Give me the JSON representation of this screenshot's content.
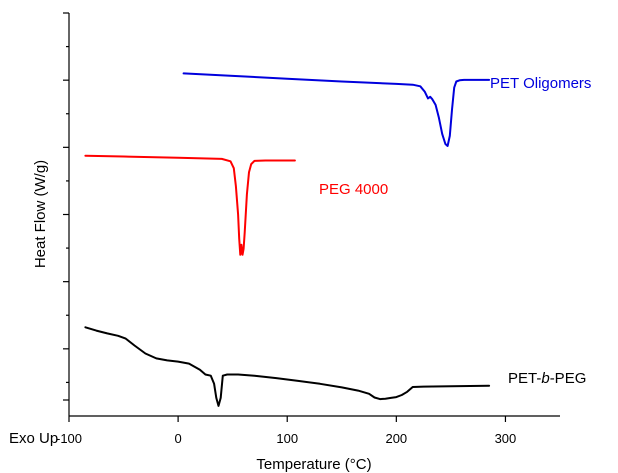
{
  "chart_data": {
    "type": "line",
    "title": "",
    "xlabel": "Temperature (°C)",
    "ylabel": "Heat Flow (W/g)",
    "corner_label": "Exo Up",
    "xlim": [
      -100,
      350
    ],
    "x_ticks": [
      -100,
      0,
      100,
      200,
      300
    ],
    "y_ticks_count": 12,
    "grid": false,
    "legend": "inline labels",
    "series": [
      {
        "name": "PET Oligomers",
        "label_parts": [
          "PET Oligomers"
        ],
        "color": "#0000dd",
        "y_units": "relative heat flow (offset)",
        "x": [
          5,
          50,
          100,
          150,
          200,
          215,
          222,
          226,
          229,
          231,
          233,
          236,
          239,
          242,
          245,
          247,
          249,
          251,
          253,
          255,
          258,
          262,
          270,
          285
        ],
        "y": [
          85.0,
          84.4,
          83.7,
          83.0,
          82.4,
          82.2,
          81.8,
          80.5,
          78.8,
          79.2,
          78.6,
          77.2,
          74.0,
          70.0,
          67.5,
          67.0,
          69.5,
          76.0,
          81.5,
          83.0,
          83.3,
          83.4,
          83.4,
          83.4
        ]
      },
      {
        "name": "PEG 4000",
        "label_parts": [
          "PEG 4000"
        ],
        "color": "#ff0000",
        "y_units": "relative heat flow (offset)",
        "x": [
          -85,
          -50,
          0,
          40,
          48,
          51,
          53,
          55,
          56,
          57,
          58,
          59,
          60,
          61,
          63,
          65,
          67,
          70,
          80,
          95,
          107
        ],
        "y": [
          64.6,
          64.4,
          64.1,
          63.8,
          63.2,
          61.5,
          57.0,
          50.0,
          44.0,
          40.0,
          42.5,
          40.0,
          41.5,
          45.5,
          55.0,
          60.5,
          62.5,
          63.3,
          63.4,
          63.4,
          63.4
        ]
      },
      {
        "name": "PET-b-PEG",
        "label_parts": [
          "PET-",
          "b",
          "-PEG"
        ],
        "color": "#000000",
        "y_units": "relative heat flow (offset)",
        "x": [
          -85,
          -75,
          -65,
          -55,
          -48,
          -40,
          -30,
          -20,
          -10,
          0,
          10,
          20,
          25,
          30,
          33,
          35,
          37,
          39,
          41,
          45,
          55,
          70,
          90,
          110,
          130,
          150,
          165,
          175,
          180,
          185,
          190,
          195,
          200,
          205,
          210,
          215,
          225,
          250,
          285
        ],
        "y": [
          22.0,
          21.2,
          20.5,
          19.9,
          19.2,
          17.5,
          15.5,
          14.3,
          13.8,
          13.5,
          13.0,
          11.5,
          10.3,
          10.0,
          8.0,
          4.5,
          2.5,
          4.5,
          10.0,
          10.3,
          10.3,
          10.0,
          9.4,
          8.7,
          8.0,
          7.1,
          6.3,
          5.5,
          4.6,
          4.2,
          4.3,
          4.5,
          4.7,
          5.2,
          6.0,
          7.2,
          7.3,
          7.4,
          7.5
        ]
      }
    ]
  }
}
